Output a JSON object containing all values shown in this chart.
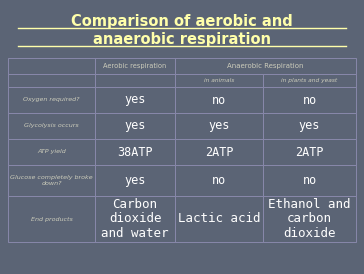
{
  "title_line1": "Comparison of aerobic and",
  "title_line2": "anaerobic respiration",
  "title_color": "#FFFFAA",
  "background_color": "#5B6475",
  "table_bg_color": "#5B6475",
  "border_color": "#999AAA",
  "row_labels": [
    "Oxygen required?",
    "Glycolysis occurs",
    "ATP yield",
    "Glucose completely broke\ndown?",
    "End products"
  ],
  "data": [
    [
      "yes",
      "no",
      "no"
    ],
    [
      "yes",
      "yes",
      "yes"
    ],
    [
      "38ATP",
      "2ATP",
      "2ATP"
    ],
    [
      "yes",
      "no",
      "no"
    ],
    [
      "Carbon\ndioxide\nand water",
      "Lactic acid",
      "Ethanol and\ncarbon\ndioxide"
    ]
  ],
  "header1_aerobic": "Aerobic respiration",
  "header1_anaerobic": "Anaerobic Respiration",
  "header2_animals": "in animals",
  "header2_plants": "in plants and yeast",
  "small_text_color": "#CCCCBB",
  "large_text_color": "#FFFFFF",
  "grid_color": "#8888AA"
}
